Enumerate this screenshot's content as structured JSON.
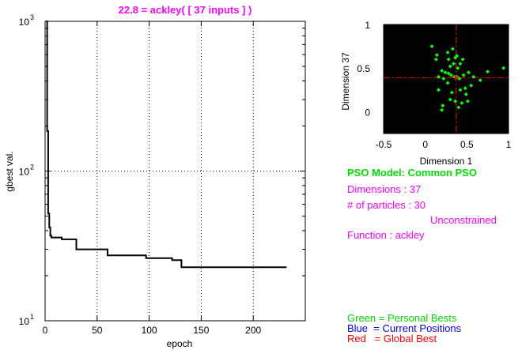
{
  "window": {
    "background": "#ffffff"
  },
  "chart_data": [
    {
      "type": "line",
      "title": "22.8 = ackley( [ 37 inputs ] )",
      "title_color": "#ff00ff",
      "xlabel": "epoch",
      "ylabel": "gbest val.",
      "xlim": [
        0,
        250
      ],
      "ylim": [
        10,
        1000
      ],
      "yscale": "log",
      "grid": "dotted",
      "xticks": [
        "0",
        "50",
        "100",
        "150",
        "200"
      ],
      "xtick_values": [
        0,
        50,
        100,
        150,
        200
      ],
      "yticks": [
        {
          "base": "10",
          "exp": "1",
          "value": 10
        },
        {
          "base": "10",
          "exp": "2",
          "value": 100
        },
        {
          "base": "10",
          "exp": "3",
          "value": 1000
        }
      ],
      "line_color": "#000000",
      "series": [
        {
          "x": [
            1,
            2,
            2,
            3,
            3,
            4,
            4,
            5,
            5,
            6,
            6,
            16,
            16,
            30,
            30,
            60,
            60,
            97,
            97,
            122,
            122,
            131,
            131,
            232
          ],
          "y": [
            1000,
            1000,
            185,
            185,
            52,
            52,
            42,
            42,
            37,
            37,
            36,
            36,
            35,
            35,
            30,
            30,
            27.3,
            27.3,
            26.2,
            26.2,
            25.4,
            25.4,
            22.8,
            22.8
          ]
        }
      ]
    },
    {
      "type": "scatter",
      "xlabel": "Dimension 1",
      "ylabel": "Dimension 37",
      "xlim": [
        -0.5,
        1
      ],
      "ylim": [
        -0.25,
        1
      ],
      "xticks": [
        "-0.5",
        "0",
        "0.5",
        "1"
      ],
      "xtick_values": [
        -0.5,
        0,
        0.5,
        1
      ],
      "yticks": [
        "0",
        "0.5",
        "1"
      ],
      "ytick_values": [
        0,
        0.5,
        1
      ],
      "background": "#000000",
      "point_color": "#00ff00",
      "crosshair_color": "#ff0000",
      "global_best": {
        "x": 0.37,
        "y": 0.39
      },
      "points": [
        [
          0.08,
          0.75
        ],
        [
          0.14,
          0.65
        ],
        [
          0.13,
          0.6
        ],
        [
          0.27,
          0.68
        ],
        [
          0.28,
          0.6
        ],
        [
          0.33,
          0.72
        ],
        [
          0.36,
          0.62
        ],
        [
          0.38,
          0.64
        ],
        [
          0.42,
          0.55
        ],
        [
          0.3,
          0.52
        ],
        [
          0.34,
          0.55
        ],
        [
          0.39,
          0.5
        ],
        [
          0.45,
          0.6
        ],
        [
          0.2,
          0.47
        ],
        [
          0.24,
          0.45
        ],
        [
          0.28,
          0.44
        ],
        [
          0.31,
          0.42
        ],
        [
          0.35,
          0.4
        ],
        [
          0.38,
          0.4
        ],
        [
          0.41,
          0.38
        ],
        [
          0.46,
          0.42
        ],
        [
          0.52,
          0.45
        ],
        [
          0.58,
          0.4
        ],
        [
          0.66,
          0.36
        ],
        [
          0.55,
          0.3
        ],
        [
          0.48,
          0.27
        ],
        [
          0.42,
          0.25
        ],
        [
          0.27,
          0.33
        ],
        [
          0.22,
          0.38
        ],
        [
          0.16,
          0.4
        ],
        [
          0.32,
          0.22
        ],
        [
          0.36,
          0.12
        ],
        [
          0.44,
          0.1
        ],
        [
          0.51,
          0.12
        ],
        [
          0.4,
          0.05
        ],
        [
          0.16,
          0.25
        ],
        [
          0.21,
          0.07
        ],
        [
          0.2,
          0.02
        ],
        [
          0.3,
          0.14
        ],
        [
          0.49,
          0.2
        ],
        [
          0.75,
          0.46
        ],
        [
          0.94,
          0.5
        ]
      ]
    }
  ],
  "info": {
    "model": {
      "text": "PSO Model: Common PSO",
      "color": "#00e000"
    },
    "dimensions": {
      "text": "Dimensions : 37",
      "color": "#ff00ff"
    },
    "particles": {
      "text": "# of particles : 30",
      "color": "#ff00ff"
    },
    "constraint": {
      "text": "Unconstrained",
      "color": "#ff00ff"
    },
    "function": {
      "text": "Function : ackley",
      "color": "#ff00ff"
    }
  },
  "legend": {
    "green": {
      "text": "Green = Personal Bests",
      "color": "#00dd00"
    },
    "blue": {
      "text": "Blue  = Current Positions",
      "color": "#0000ff"
    },
    "red": {
      "text": "Red   = Global Best",
      "color": "#ff0000"
    }
  }
}
